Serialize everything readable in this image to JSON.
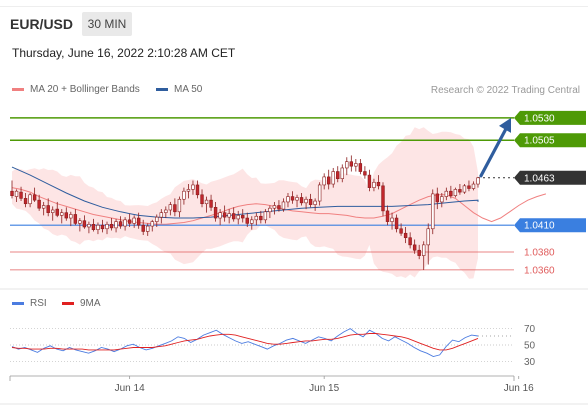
{
  "header": {
    "symbol": "EUR/USD",
    "timeframe": "30 MIN",
    "datetime": "Thursday, June 16, 2022 2:10:28 AM CET",
    "copyright": "Research © 2022 Trading Central"
  },
  "legend": {
    "ma_bb_label": "MA 20 + Bollinger Bands",
    "ma50_label": "MA 50",
    "rsi_label": "RSI",
    "ma9_label": "9MA"
  },
  "colors": {
    "ma20": "#f08080",
    "ma50": "#2f5d9e",
    "bollinger_fill": "#fde2e2",
    "candle_up": "#ffffff",
    "candle_down": "#c0272d",
    "candle_outline": "#8a1c1c",
    "resistance": "#4e9a06",
    "pivot": "#3a7fe0",
    "support": "#e05c5c",
    "current": "#333333",
    "rsi": "#4c7ce0",
    "rsi_ma": "#e02020",
    "arrow": "#2f5d9e"
  },
  "price_levels": [
    {
      "label": "1.0530",
      "value": 1.053,
      "kind": "resistance"
    },
    {
      "label": "1.0505",
      "value": 1.0505,
      "kind": "resistance"
    },
    {
      "label": "1.0463",
      "value": 1.0463,
      "kind": "current"
    },
    {
      "label": "1.0410",
      "value": 1.041,
      "kind": "pivot"
    },
    {
      "label": "1.0380",
      "value": 1.038,
      "kind": "support"
    },
    {
      "label": "1.0360",
      "value": 1.036,
      "kind": "support"
    }
  ],
  "chart_data": [
    {
      "type": "candlestick",
      "title": "EUR/USD 30 MIN",
      "x_tick_labels": [
        "Jun 14",
        "Jun 15",
        "Jun 16"
      ],
      "x_tick_index": [
        26,
        69,
        112
      ],
      "ylim": [
        1.0342,
        1.055
      ],
      "candles": [
        [
          1.0448,
          1.046,
          1.044,
          1.0443
        ],
        [
          1.0442,
          1.045,
          1.0436,
          1.0448
        ],
        [
          1.0447,
          1.0453,
          1.0437,
          1.044
        ],
        [
          1.044,
          1.0446,
          1.043,
          1.0434
        ],
        [
          1.0434,
          1.0446,
          1.043,
          1.0444
        ],
        [
          1.0444,
          1.0452,
          1.0436,
          1.0438
        ],
        [
          1.0438,
          1.0444,
          1.0426,
          1.0429
        ],
        [
          1.0429,
          1.0436,
          1.0421,
          1.0432
        ],
        [
          1.0432,
          1.044,
          1.042,
          1.0424
        ],
        [
          1.0424,
          1.0431,
          1.0415,
          1.0427
        ],
        [
          1.0428,
          1.0436,
          1.0419,
          1.0421
        ],
        [
          1.0421,
          1.0428,
          1.0412,
          1.0424
        ],
        [
          1.0424,
          1.043,
          1.0415,
          1.0418
        ],
        [
          1.0418,
          1.0425,
          1.0409,
          1.0422
        ],
        [
          1.0422,
          1.0428,
          1.041,
          1.0412
        ],
        [
          1.0412,
          1.0418,
          1.0403,
          1.0415
        ],
        [
          1.0415,
          1.0421,
          1.0406,
          1.0408
        ],
        [
          1.0408,
          1.0414,
          1.0401,
          1.0411
        ],
        [
          1.0411,
          1.0417,
          1.0403,
          1.0405
        ],
        [
          1.0405,
          1.0413,
          1.04,
          1.041
        ],
        [
          1.041,
          1.0416,
          1.0402,
          1.0406
        ],
        [
          1.0406,
          1.0414,
          1.04,
          1.0411
        ],
        [
          1.0411,
          1.0418,
          1.0404,
          1.0407
        ],
        [
          1.0407,
          1.0417,
          1.0402,
          1.0414
        ],
        [
          1.0414,
          1.042,
          1.0406,
          1.0409
        ],
        [
          1.0409,
          1.0419,
          1.0404,
          1.0416
        ],
        [
          1.0416,
          1.0423,
          1.0408,
          1.0412
        ],
        [
          1.0412,
          1.0421,
          1.0407,
          1.0418
        ],
        [
          1.0418,
          1.0424,
          1.0406,
          1.041
        ],
        [
          1.041,
          1.0416,
          1.0399,
          1.0403
        ],
        [
          1.0403,
          1.0412,
          1.0398,
          1.0409
        ],
        [
          1.0409,
          1.0416,
          1.0403,
          1.0414
        ],
        [
          1.0414,
          1.0422,
          1.0408,
          1.0419
        ],
        [
          1.0419,
          1.0428,
          1.0412,
          1.0424
        ],
        [
          1.0424,
          1.0431,
          1.0418,
          1.0427
        ],
        [
          1.0427,
          1.0436,
          1.0421,
          1.0433
        ],
        [
          1.0433,
          1.044,
          1.042,
          1.0425
        ],
        [
          1.0425,
          1.0442,
          1.0419,
          1.0439
        ],
        [
          1.0439,
          1.0452,
          1.0433,
          1.0448
        ],
        [
          1.0448,
          1.0456,
          1.044,
          1.045
        ],
        [
          1.045,
          1.046,
          1.0444,
          1.0455
        ],
        [
          1.0455,
          1.046,
          1.044,
          1.0444
        ],
        [
          1.0444,
          1.045,
          1.043,
          1.0434
        ],
        [
          1.0434,
          1.0442,
          1.0424,
          1.0438
        ],
        [
          1.0438,
          1.0444,
          1.0426,
          1.043
        ],
        [
          1.043,
          1.0436,
          1.0414,
          1.0418
        ],
        [
          1.0418,
          1.0428,
          1.041,
          1.0424
        ],
        [
          1.0424,
          1.0432,
          1.0414,
          1.0419
        ],
        [
          1.0419,
          1.0428,
          1.0412,
          1.0423
        ],
        [
          1.0423,
          1.043,
          1.0414,
          1.0417
        ],
        [
          1.0417,
          1.0426,
          1.0411,
          1.0421
        ],
        [
          1.0421,
          1.0428,
          1.0413,
          1.0418
        ],
        [
          1.0418,
          1.0424,
          1.0408,
          1.0412
        ],
        [
          1.0412,
          1.042,
          1.0405,
          1.0416
        ],
        [
          1.0416,
          1.0424,
          1.041,
          1.042
        ],
        [
          1.042,
          1.0426,
          1.0412,
          1.0416
        ],
        [
          1.0416,
          1.0428,
          1.0412,
          1.0425
        ],
        [
          1.0425,
          1.0432,
          1.0418,
          1.0429
        ],
        [
          1.0429,
          1.0436,
          1.0422,
          1.0432
        ],
        [
          1.0432,
          1.0438,
          1.0425,
          1.0428
        ],
        [
          1.0428,
          1.044,
          1.0425,
          1.0436
        ],
        [
          1.0436,
          1.0446,
          1.043,
          1.0442
        ],
        [
          1.0442,
          1.0448,
          1.0434,
          1.0438
        ],
        [
          1.0438,
          1.0444,
          1.043,
          1.0441
        ],
        [
          1.0441,
          1.0446,
          1.0432,
          1.0435
        ],
        [
          1.0435,
          1.0442,
          1.0428,
          1.0439
        ],
        [
          1.0439,
          1.0445,
          1.043,
          1.0433
        ],
        [
          1.0433,
          1.044,
          1.0426,
          1.0437
        ],
        [
          1.0437,
          1.0458,
          1.0432,
          1.0455
        ],
        [
          1.0455,
          1.0468,
          1.045,
          1.0464
        ],
        [
          1.0464,
          1.0472,
          1.045,
          1.0456
        ],
        [
          1.0456,
          1.0474,
          1.0452,
          1.047
        ],
        [
          1.047,
          1.0476,
          1.0458,
          1.0462
        ],
        [
          1.0462,
          1.0478,
          1.0458,
          1.0474
        ],
        [
          1.0474,
          1.0486,
          1.0466,
          1.0481
        ],
        [
          1.0481,
          1.0488,
          1.047,
          1.0476
        ],
        [
          1.0476,
          1.0484,
          1.047,
          1.0479
        ],
        [
          1.0479,
          1.0484,
          1.0467,
          1.047
        ],
        [
          1.047,
          1.0476,
          1.0462,
          1.0466
        ],
        [
          1.0466,
          1.0472,
          1.0448,
          1.0452
        ],
        [
          1.0452,
          1.0462,
          1.0448,
          1.0458
        ],
        [
          1.0458,
          1.0466,
          1.045,
          1.0454
        ],
        [
          1.0454,
          1.0458,
          1.042,
          1.0426
        ],
        [
          1.0426,
          1.0432,
          1.041,
          1.0414
        ],
        [
          1.0414,
          1.0424,
          1.0405,
          1.0418
        ],
        [
          1.0418,
          1.0422,
          1.0402,
          1.0406
        ],
        [
          1.0406,
          1.0412,
          1.0398,
          1.0401
        ],
        [
          1.0401,
          1.0408,
          1.039,
          1.0396
        ],
        [
          1.0396,
          1.0402,
          1.0384,
          1.0388
        ],
        [
          1.0388,
          1.0394,
          1.0378,
          1.0382
        ],
        [
          1.0382,
          1.0388,
          1.0372,
          1.0376
        ],
        [
          1.0376,
          1.0392,
          1.036,
          1.0388
        ],
        [
          1.0388,
          1.0412,
          1.0366,
          1.0406
        ],
        [
          1.0406,
          1.045,
          1.04,
          1.0445
        ],
        [
          1.0445,
          1.0452,
          1.0428,
          1.0436
        ],
        [
          1.0436,
          1.0446,
          1.043,
          1.0442
        ],
        [
          1.0442,
          1.0452,
          1.0438,
          1.0448
        ],
        [
          1.0448,
          1.0454,
          1.044,
          1.0443
        ],
        [
          1.0443,
          1.0452,
          1.0441,
          1.045
        ],
        [
          1.045,
          1.0456,
          1.0444,
          1.0447
        ],
        [
          1.0447,
          1.0456,
          1.0445,
          1.0454
        ],
        [
          1.0454,
          1.046,
          1.0448,
          1.0451
        ],
        [
          1.0451,
          1.0459,
          1.0449,
          1.0456
        ],
        [
          1.0456,
          1.0464,
          1.0452,
          1.0463
        ]
      ],
      "ma20": [
        1.0452,
        1.045,
        1.0447,
        1.0442,
        1.0438,
        1.0434,
        1.0431,
        1.0428,
        1.0425,
        1.0422,
        1.042,
        1.0418,
        1.0416,
        1.0414,
        1.0413,
        1.0412,
        1.0411,
        1.0411,
        1.0412,
        1.0413,
        1.0415,
        1.0418,
        1.0421,
        1.0424,
        1.0428,
        1.0431,
        1.0433,
        1.0434,
        1.0433,
        1.0431,
        1.0428,
        1.0426,
        1.0425,
        1.0424,
        1.0423,
        1.0423,
        1.0422,
        1.0421,
        1.0419,
        1.0418,
        1.0418,
        1.042,
        1.0423,
        1.0428,
        1.0433,
        1.0438,
        1.0442,
        1.0444,
        1.0444,
        1.044,
        1.0432,
        1.0424,
        1.0418,
        1.0414,
        1.0418,
        1.0425,
        1.0432,
        1.0438,
        1.0442,
        1.0445
      ],
      "ma20_index": [
        0,
        2,
        4,
        6,
        8,
        10,
        12,
        14,
        16,
        18,
        20,
        22,
        24,
        26,
        28,
        30,
        32,
        34,
        36,
        38,
        40,
        42,
        44,
        46,
        48,
        50,
        52,
        54,
        56,
        58,
        60,
        62,
        64,
        66,
        68,
        70,
        72,
        74,
        76,
        78,
        80,
        82,
        84,
        86,
        88,
        90,
        92,
        94,
        96,
        98,
        100,
        102,
        104,
        106,
        108,
        110,
        112,
        114,
        116,
        118
      ],
      "ma50": [
        1.0475,
        1.0466,
        1.0456,
        1.0446,
        1.0437,
        1.043,
        1.0425,
        1.0421,
        1.0419,
        1.0418,
        1.0418,
        1.0419,
        1.0421,
        1.0423,
        1.0425,
        1.0427,
        1.0429,
        1.043,
        1.0431,
        1.0431,
        1.0431,
        1.0431,
        1.0432,
        1.0433,
        1.0435,
        1.0437,
        1.0438,
        1.0438,
        1.0438,
        1.0437,
        1.0436,
        1.0436
      ],
      "ma50_index": [
        0,
        4,
        8,
        12,
        16,
        20,
        24,
        28,
        32,
        36,
        40,
        44,
        48,
        52,
        56,
        60,
        64,
        68,
        72,
        76,
        80,
        84,
        88,
        92,
        96,
        100,
        104,
        108,
        112,
        116,
        118,
        120
      ]
    },
    {
      "type": "line",
      "title": "RSI",
      "ylim": [
        22,
        78
      ],
      "y_ticks": [
        70,
        50,
        30
      ],
      "series": [
        {
          "name": "RSI",
          "values": [
            48,
            45,
            47,
            44,
            41,
            46,
            49,
            45,
            43,
            47,
            44,
            42,
            40,
            43,
            47,
            45,
            42,
            45,
            49,
            51,
            47,
            44,
            46,
            49,
            52,
            55,
            60,
            58,
            53,
            57,
            62,
            65,
            68,
            63,
            59,
            55,
            52,
            54,
            51,
            48,
            45,
            49,
            52,
            56,
            58,
            55,
            52,
            56,
            60,
            58,
            55,
            61,
            66,
            70,
            64,
            60,
            68,
            64,
            58,
            55,
            60,
            56,
            52,
            47,
            43,
            40,
            36,
            38,
            48,
            56,
            54,
            59,
            62,
            61
          ]
        },
        {
          "name": "9MA",
          "values": [
            47,
            46,
            46,
            45,
            45,
            45,
            46,
            46,
            45,
            45,
            45,
            45,
            44,
            44,
            44,
            44,
            44,
            45,
            46,
            47,
            47,
            47,
            47,
            48,
            49,
            51,
            53,
            55,
            56,
            57,
            59,
            61,
            62,
            63,
            63,
            62,
            60,
            58,
            56,
            54,
            52,
            51,
            51,
            52,
            53,
            54,
            55,
            55,
            56,
            57,
            57,
            58,
            60,
            62,
            63,
            63,
            64,
            64,
            63,
            62,
            61,
            60,
            58,
            55,
            52,
            49,
            46,
            44,
            44,
            46,
            49,
            52,
            55,
            58
          ]
        }
      ]
    }
  ]
}
